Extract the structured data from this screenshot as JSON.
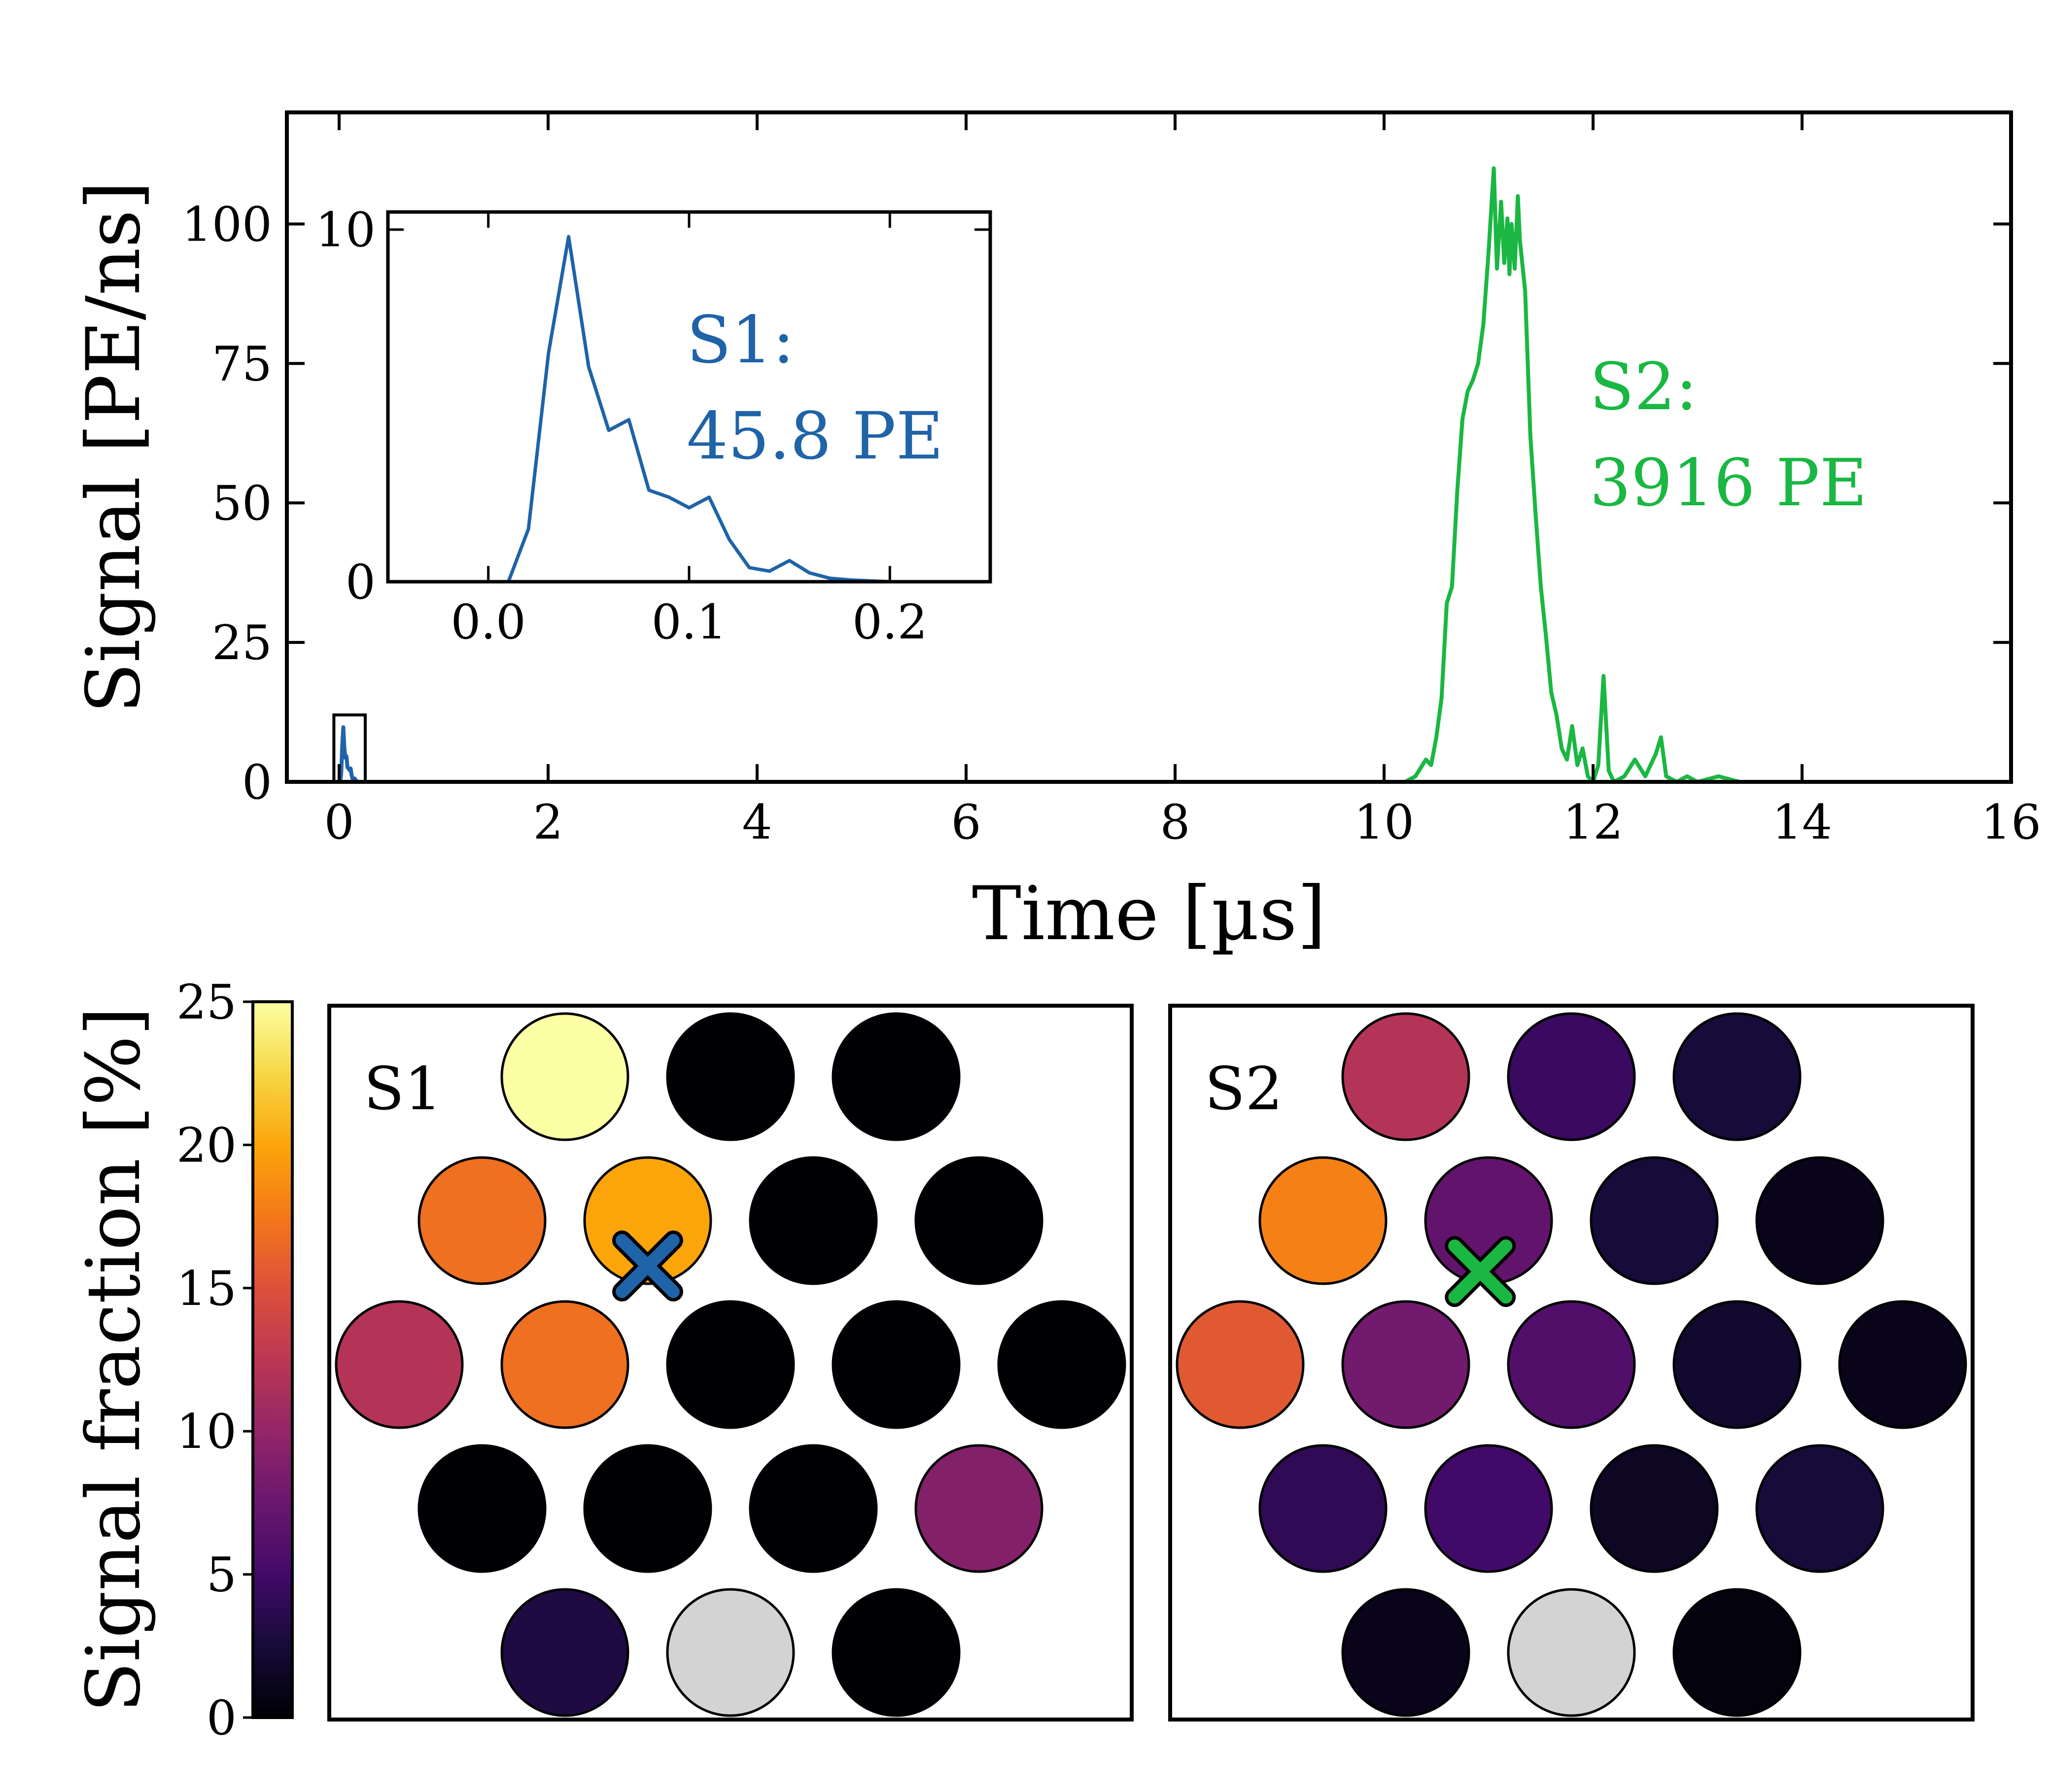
{
  "chart_data": [
    {
      "type": "line",
      "name": "waveform",
      "xlabel": "Time [µs]",
      "ylabel": "Signal [PE/ns]",
      "xlim": [
        -0.5,
        16
      ],
      "ylim": [
        0,
        120
      ],
      "xticks": [
        0,
        2,
        4,
        6,
        8,
        10,
        12,
        14,
        16
      ],
      "yticks": [
        0,
        25,
        50,
        75,
        100
      ],
      "series": [
        {
          "name": "S1",
          "color": "#1f63a8",
          "label": "S1:",
          "value_label": "45.8 PE",
          "x": [
            -0.05,
            0.0,
            0.01,
            0.02,
            0.03,
            0.04,
            0.05,
            0.06,
            0.07,
            0.08,
            0.09,
            0.1,
            0.11,
            0.12,
            0.13,
            0.14,
            0.15,
            0.16,
            0.17,
            0.18,
            0.2
          ],
          "y": [
            0,
            0,
            0,
            1.5,
            6.5,
            9.8,
            6.1,
            4.3,
            4.6,
            2.6,
            2.4,
            2.1,
            2.4,
            1.2,
            0.4,
            0.3,
            0.6,
            0.25,
            0.1,
            0.05,
            0
          ]
        },
        {
          "name": "S2",
          "color": "#1ab742",
          "label": "S2:",
          "value_label": "3916 PE",
          "x": [
            10.2,
            10.3,
            10.4,
            10.45,
            10.5,
            10.55,
            10.6,
            10.65,
            10.7,
            10.75,
            10.8,
            10.85,
            10.9,
            10.95,
            11.0,
            11.05,
            11.08,
            11.1,
            11.12,
            11.15,
            11.18,
            11.2,
            11.22,
            11.25,
            11.28,
            11.3,
            11.35,
            11.4,
            11.45,
            11.5,
            11.55,
            11.6,
            11.65,
            11.7,
            11.75,
            11.8,
            11.85,
            11.9,
            11.95,
            12.0,
            12.05,
            12.1,
            12.15,
            12.2,
            12.3,
            12.4,
            12.5,
            12.6,
            12.65,
            12.7,
            12.8,
            12.9,
            13.0,
            13.2,
            13.4,
            13.6,
            14.0
          ],
          "y": [
            0,
            1,
            4,
            3,
            8,
            15,
            32,
            35,
            52,
            65,
            70,
            72,
            75,
            82,
            95,
            110,
            92,
            98,
            104,
            93,
            101,
            91,
            100,
            92,
            105,
            97,
            88,
            62,
            48,
            35,
            26,
            16,
            12,
            6,
            4,
            10,
            3,
            6,
            1,
            0,
            3,
            19,
            2,
            0,
            1,
            4,
            1,
            5,
            8,
            1,
            0,
            1,
            0,
            1,
            0,
            0,
            0
          ]
        }
      ]
    },
    {
      "type": "line",
      "name": "inset",
      "xlim": [
        -0.05,
        0.25
      ],
      "ylim": [
        0,
        10.5
      ],
      "xticks": [
        0.0,
        0.1,
        0.2
      ],
      "xtick_labels": [
        "0.0",
        "0.1",
        "0.2"
      ],
      "yticks": [
        0,
        10
      ]
    },
    {
      "type": "heatmap",
      "name": "pmt_arrays",
      "colorbar_label": "Signal fraction [%]",
      "colorbar_ticks": [
        0,
        5,
        10,
        15,
        20,
        25
      ],
      "vmin": 0,
      "vmax": 25,
      "cmap": "inferno",
      "panels": [
        {
          "label": "S1",
          "marker_color": "#1f63a8",
          "marker_position": [
            1.5,
            2.74
          ],
          "rows": [
            [
              25,
              0,
              0
            ],
            [
              17,
              20,
              0,
              0
            ],
            [
              12,
              17,
              0,
              0,
              0
            ],
            [
              0,
              0,
              0,
              9
            ],
            [
              3,
              null,
              0
            ]
          ]
        },
        {
          "label": "S2",
          "marker_color": "#1ab742",
          "marker_position": [
            1.45,
            2.82
          ],
          "rows": [
            [
              12,
              4.5,
              2.5
            ],
            [
              18,
              7,
              2.5,
              1
            ],
            [
              15.5,
              8,
              6,
              2,
              1
            ],
            [
              4,
              5,
              1.5,
              2.5
            ],
            [
              1,
              null,
              0.5
            ]
          ]
        }
      ]
    }
  ]
}
